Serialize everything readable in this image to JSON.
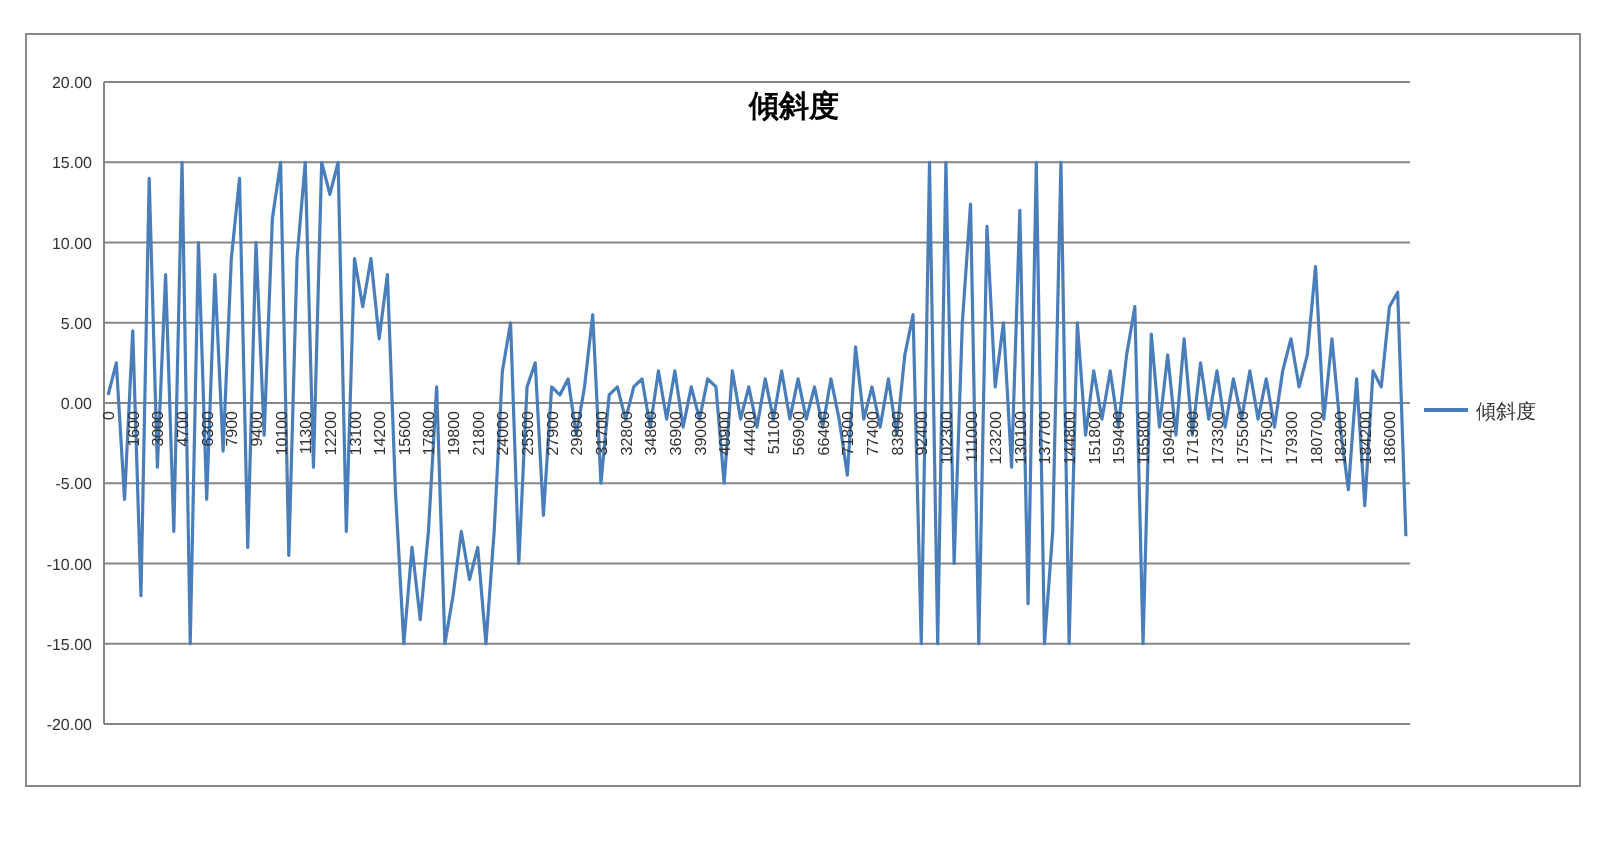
{
  "chart_data": {
    "type": "line",
    "title": "傾斜度",
    "categories": [
      "0",
      null,
      null,
      "1600",
      null,
      null,
      "3000",
      null,
      null,
      "4700",
      null,
      null,
      "6300",
      null,
      null,
      "7900",
      null,
      null,
      "9400",
      null,
      null,
      "10100",
      null,
      null,
      "11300",
      null,
      null,
      "12200",
      null,
      null,
      "13100",
      null,
      null,
      "14200",
      null,
      null,
      "15600",
      null,
      null,
      "17800",
      null,
      null,
      "19800",
      null,
      null,
      "21800",
      null,
      null,
      "24000",
      null,
      null,
      "25500",
      null,
      null,
      "27900",
      null,
      null,
      "29800",
      null,
      null,
      "31700",
      null,
      null,
      "32800",
      null,
      null,
      "34800",
      null,
      null,
      "36900",
      null,
      null,
      "39000",
      null,
      null,
      "40900",
      null,
      null,
      "44400",
      null,
      null,
      "51100",
      null,
      null,
      "56900",
      null,
      null,
      "66400",
      null,
      null,
      "71800",
      null,
      null,
      "77400",
      null,
      null,
      "83800",
      null,
      null,
      "92400",
      null,
      null,
      "102300",
      null,
      null,
      "111000",
      null,
      null,
      "123200",
      null,
      null,
      "130100",
      null,
      null,
      "137700",
      null,
      null,
      "144800",
      null,
      null,
      "151800",
      null,
      null,
      "159400",
      null,
      null,
      "165800",
      null,
      null,
      "169400",
      null,
      null,
      "171300",
      null,
      null,
      "173300",
      null,
      null,
      "175500",
      null,
      null,
      "177500",
      null,
      null,
      "179300",
      null,
      null,
      "180700",
      null,
      null,
      "182300",
      null,
      null,
      "184200",
      null,
      null,
      "186000",
      null,
      null
    ],
    "series": [
      {
        "name": "傾斜度",
        "color": "#4a7ebb",
        "values": [
          0.5,
          2.5,
          -6,
          4.5,
          -12,
          14,
          -4,
          8,
          -8,
          15,
          -15,
          10,
          -6,
          8,
          -3,
          9,
          14,
          -9,
          10,
          -2,
          11.5,
          15,
          -9.5,
          9,
          15,
          -4,
          15,
          13,
          15,
          -8,
          9,
          6,
          9,
          4,
          8,
          -5.7,
          -15,
          -9,
          -13.5,
          -8,
          1,
          -15,
          -12,
          -8,
          -11,
          -9,
          -15,
          -8,
          2,
          5,
          -10,
          1,
          2.5,
          -7,
          1,
          0.5,
          1.5,
          -2,
          1,
          5.5,
          -5,
          0.5,
          1,
          -1,
          1,
          1.5,
          -1.5,
          2,
          -1,
          2,
          -1.5,
          1,
          -1,
          1.5,
          1,
          -5,
          2,
          -1,
          1,
          -1.5,
          1.5,
          -1,
          2,
          -1,
          1.5,
          -1,
          1,
          -1.5,
          1.5,
          -1,
          -4.5,
          3.5,
          -1,
          1,
          -1.5,
          1.5,
          -2,
          3,
          5.5,
          -15,
          15,
          -15,
          15,
          -10,
          5,
          12.4,
          -15,
          11,
          1,
          5,
          -4,
          12,
          -12.5,
          15,
          -15,
          -8,
          15,
          -15,
          5,
          -2,
          2,
          -1,
          2,
          -1.5,
          3,
          6,
          -15,
          4.3,
          -1.5,
          3,
          -2,
          4,
          -2,
          2.5,
          -1,
          2,
          -1.5,
          1.5,
          -1,
          2,
          -1,
          1.5,
          -1.5,
          2,
          4,
          1,
          3,
          8.5,
          -1,
          4,
          -1.5,
          -5.4,
          1.5,
          -6.4,
          2,
          1,
          6,
          6.9,
          -8.3
        ]
      }
    ],
    "ylim": [
      -20,
      20
    ],
    "yticks": [
      {
        "value": -20,
        "label": "-20.00"
      },
      {
        "value": -15,
        "label": "-15.00"
      },
      {
        "value": -10,
        "label": "-10.00"
      },
      {
        "value": -5,
        "label": "-5.00"
      },
      {
        "value": 0,
        "label": "0.00"
      },
      {
        "value": 5,
        "label": "5.00"
      },
      {
        "value": 10,
        "label": "10.00"
      },
      {
        "value": 15,
        "label": "15.00"
      },
      {
        "value": 20,
        "label": "20.00"
      }
    ],
    "grid": "y",
    "legend": "right"
  }
}
